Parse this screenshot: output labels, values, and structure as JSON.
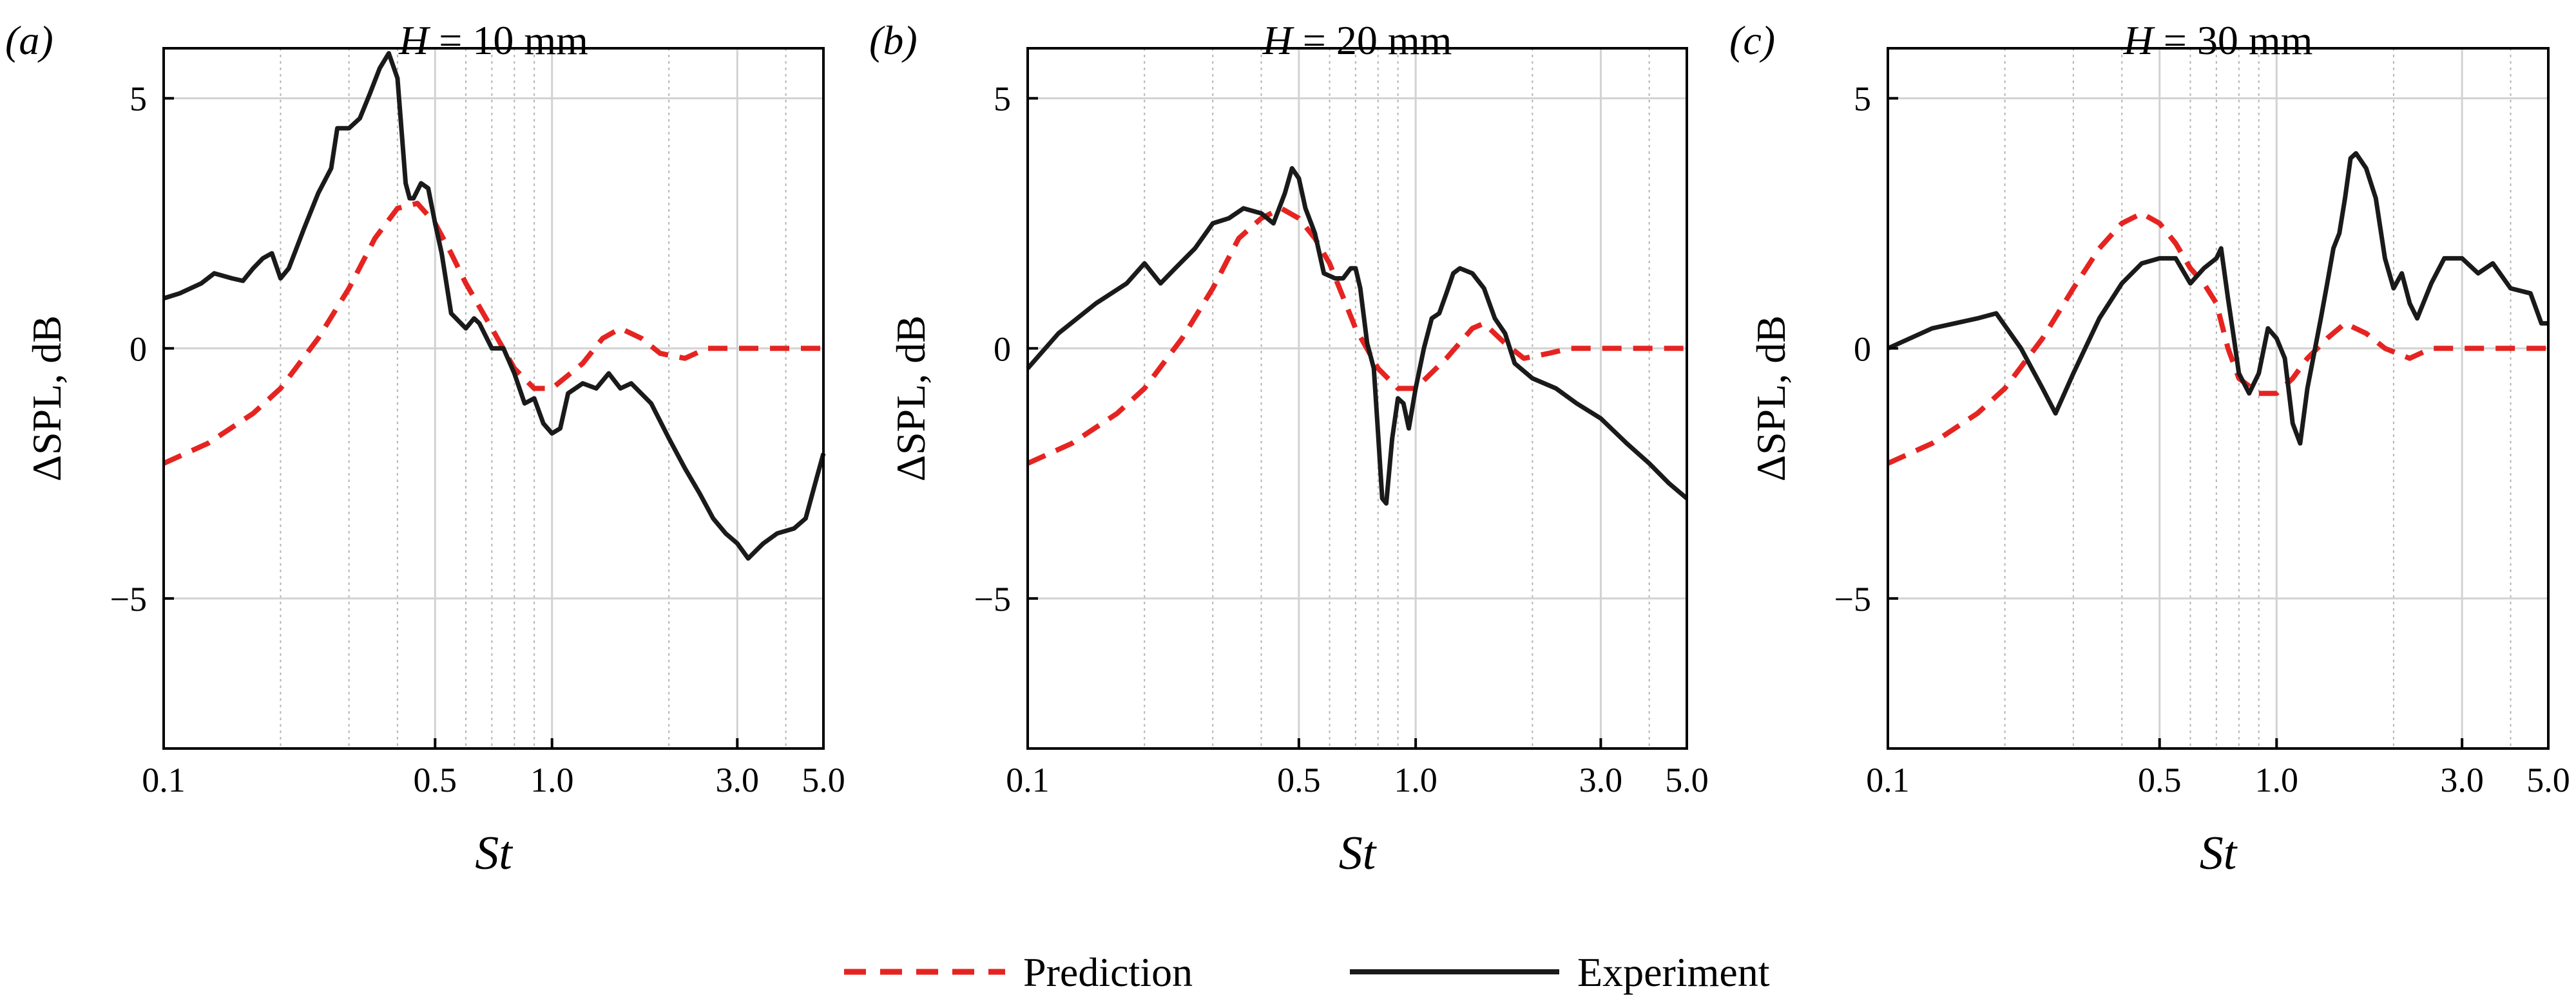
{
  "chart_data": [
    {
      "type": "line",
      "panel_label": "(a)",
      "title_var": "H",
      "title_rest": " = 10 mm",
      "xlabel": "St",
      "ylabel": "ΔSPL, dB",
      "xscale": "log",
      "xlim": [
        0.1,
        5.0
      ],
      "ylim": [
        -8,
        6
      ],
      "xticks": [
        "0.1",
        "0.5",
        "1.0",
        "3.0",
        "5.0"
      ],
      "yticks": [
        "5",
        "0",
        "−5"
      ],
      "grid": true,
      "series": [
        {
          "name": "Prediction",
          "style": "dashed",
          "color": "#e52421",
          "points": [
            [
              0.1,
              -2.3
            ],
            [
              0.13,
              -1.9
            ],
            [
              0.17,
              -1.3
            ],
            [
              0.2,
              -0.8
            ],
            [
              0.25,
              0.2
            ],
            [
              0.3,
              1.2
            ],
            [
              0.35,
              2.2
            ],
            [
              0.4,
              2.8
            ],
            [
              0.45,
              2.9
            ],
            [
              0.5,
              2.5
            ],
            [
              0.55,
              1.9
            ],
            [
              0.6,
              1.3
            ],
            [
              0.7,
              0.4
            ],
            [
              0.8,
              -0.4
            ],
            [
              0.9,
              -0.8
            ],
            [
              1.0,
              -0.8
            ],
            [
              1.2,
              -0.3
            ],
            [
              1.35,
              0.2
            ],
            [
              1.5,
              0.4
            ],
            [
              1.7,
              0.2
            ],
            [
              1.9,
              -0.1
            ],
            [
              2.2,
              -0.2
            ],
            [
              2.5,
              0.0
            ],
            [
              3.0,
              0.0
            ],
            [
              4.0,
              0.0
            ],
            [
              5.0,
              0.0
            ]
          ]
        },
        {
          "name": "Experiment",
          "style": "solid",
          "color": "#1a1a1a",
          "points": [
            [
              0.1,
              1.0
            ],
            [
              0.11,
              1.1
            ],
            [
              0.125,
              1.3
            ],
            [
              0.135,
              1.5
            ],
            [
              0.15,
              1.4
            ],
            [
              0.16,
              1.35
            ],
            [
              0.17,
              1.6
            ],
            [
              0.18,
              1.8
            ],
            [
              0.19,
              1.9
            ],
            [
              0.2,
              1.4
            ],
            [
              0.21,
              1.6
            ],
            [
              0.23,
              2.4
            ],
            [
              0.25,
              3.1
            ],
            [
              0.27,
              3.6
            ],
            [
              0.28,
              4.4
            ],
            [
              0.3,
              4.4
            ],
            [
              0.32,
              4.6
            ],
            [
              0.34,
              5.1
            ],
            [
              0.36,
              5.6
            ],
            [
              0.38,
              5.9
            ],
            [
              0.4,
              5.4
            ],
            [
              0.42,
              3.3
            ],
            [
              0.43,
              3.0
            ],
            [
              0.44,
              3.0
            ],
            [
              0.46,
              3.3
            ],
            [
              0.48,
              3.2
            ],
            [
              0.5,
              2.5
            ],
            [
              0.52,
              1.9
            ],
            [
              0.55,
              0.7
            ],
            [
              0.6,
              0.4
            ],
            [
              0.63,
              0.6
            ],
            [
              0.65,
              0.5
            ],
            [
              0.7,
              0.0
            ],
            [
              0.75,
              0.0
            ],
            [
              0.8,
              -0.5
            ],
            [
              0.85,
              -1.1
            ],
            [
              0.9,
              -1.0
            ],
            [
              0.95,
              -1.5
            ],
            [
              1.0,
              -1.7
            ],
            [
              1.05,
              -1.6
            ],
            [
              1.1,
              -0.9
            ],
            [
              1.2,
              -0.7
            ],
            [
              1.3,
              -0.8
            ],
            [
              1.4,
              -0.5
            ],
            [
              1.5,
              -0.8
            ],
            [
              1.6,
              -0.7
            ],
            [
              1.8,
              -1.1
            ],
            [
              2.0,
              -1.8
            ],
            [
              2.2,
              -2.4
            ],
            [
              2.4,
              -2.9
            ],
            [
              2.6,
              -3.4
            ],
            [
              2.8,
              -3.7
            ],
            [
              3.0,
              -3.9
            ],
            [
              3.2,
              -4.2
            ],
            [
              3.5,
              -3.9
            ],
            [
              3.8,
              -3.7
            ],
            [
              4.2,
              -3.6
            ],
            [
              4.5,
              -3.4
            ],
            [
              4.8,
              -2.6
            ],
            [
              5.0,
              -2.1
            ]
          ]
        }
      ]
    },
    {
      "type": "line",
      "panel_label": "(b)",
      "title_var": "H",
      "title_rest": " = 20 mm",
      "xlabel": "St",
      "ylabel": "ΔSPL, dB",
      "xscale": "log",
      "xlim": [
        0.1,
        5.0
      ],
      "ylim": [
        -8,
        6
      ],
      "xticks": [
        "0.1",
        "0.5",
        "1.0",
        "3.0",
        "5.0"
      ],
      "yticks": [
        "5",
        "0",
        "−5"
      ],
      "grid": true,
      "series": [
        {
          "name": "Prediction",
          "style": "dashed",
          "color": "#e52421",
          "points": [
            [
              0.1,
              -2.3
            ],
            [
              0.13,
              -1.9
            ],
            [
              0.17,
              -1.3
            ],
            [
              0.2,
              -0.8
            ],
            [
              0.25,
              0.2
            ],
            [
              0.3,
              1.2
            ],
            [
              0.35,
              2.2
            ],
            [
              0.4,
              2.6
            ],
            [
              0.45,
              2.8
            ],
            [
              0.5,
              2.6
            ],
            [
              0.55,
              2.2
            ],
            [
              0.6,
              1.7
            ],
            [
              0.7,
              0.4
            ],
            [
              0.8,
              -0.4
            ],
            [
              0.9,
              -0.8
            ],
            [
              1.0,
              -0.8
            ],
            [
              1.2,
              -0.2
            ],
            [
              1.4,
              0.4
            ],
            [
              1.5,
              0.5
            ],
            [
              1.7,
              0.1
            ],
            [
              1.9,
              -0.2
            ],
            [
              2.2,
              -0.1
            ],
            [
              2.5,
              0.0
            ],
            [
              3.0,
              0.0
            ],
            [
              5.0,
              0.0
            ]
          ]
        },
        {
          "name": "Experiment",
          "style": "solid",
          "color": "#1a1a1a",
          "points": [
            [
              0.1,
              -0.4
            ],
            [
              0.12,
              0.3
            ],
            [
              0.15,
              0.9
            ],
            [
              0.18,
              1.3
            ],
            [
              0.2,
              1.7
            ],
            [
              0.22,
              1.3
            ],
            [
              0.24,
              1.6
            ],
            [
              0.27,
              2.0
            ],
            [
              0.3,
              2.5
            ],
            [
              0.33,
              2.6
            ],
            [
              0.36,
              2.8
            ],
            [
              0.4,
              2.7
            ],
            [
              0.43,
              2.5
            ],
            [
              0.46,
              3.1
            ],
            [
              0.48,
              3.6
            ],
            [
              0.5,
              3.4
            ],
            [
              0.52,
              2.8
            ],
            [
              0.55,
              2.3
            ],
            [
              0.58,
              1.5
            ],
            [
              0.62,
              1.4
            ],
            [
              0.65,
              1.4
            ],
            [
              0.68,
              1.6
            ],
            [
              0.7,
              1.6
            ],
            [
              0.72,
              1.2
            ],
            [
              0.75,
              0.1
            ],
            [
              0.78,
              -0.4
            ],
            [
              0.8,
              -1.7
            ],
            [
              0.82,
              -3.0
            ],
            [
              0.84,
              -3.1
            ],
            [
              0.87,
              -1.8
            ],
            [
              0.9,
              -1.0
            ],
            [
              0.93,
              -1.1
            ],
            [
              0.96,
              -1.6
            ],
            [
              1.0,
              -0.8
            ],
            [
              1.05,
              0.0
            ],
            [
              1.1,
              0.6
            ],
            [
              1.15,
              0.7
            ],
            [
              1.2,
              1.1
            ],
            [
              1.25,
              1.5
            ],
            [
              1.3,
              1.6
            ],
            [
              1.4,
              1.5
            ],
            [
              1.5,
              1.2
            ],
            [
              1.6,
              0.6
            ],
            [
              1.7,
              0.3
            ],
            [
              1.8,
              -0.3
            ],
            [
              2.0,
              -0.6
            ],
            [
              2.3,
              -0.8
            ],
            [
              2.6,
              -1.1
            ],
            [
              3.0,
              -1.4
            ],
            [
              3.5,
              -1.9
            ],
            [
              4.0,
              -2.3
            ],
            [
              4.5,
              -2.7
            ],
            [
              5.0,
              -3.0
            ]
          ]
        }
      ]
    },
    {
      "type": "line",
      "panel_label": "(c)",
      "title_var": "H",
      "title_rest": " = 30 mm",
      "xlabel": "St",
      "ylabel": "ΔSPL, dB",
      "xscale": "log",
      "xlim": [
        0.1,
        5.0
      ],
      "ylim": [
        -8,
        6
      ],
      "xticks": [
        "0.1",
        "0.5",
        "1.0",
        "3.0",
        "5.0"
      ],
      "yticks": [
        "5",
        "0",
        "−5"
      ],
      "grid": true,
      "series": [
        {
          "name": "Prediction",
          "style": "dashed",
          "color": "#e52421",
          "points": [
            [
              0.1,
              -2.3
            ],
            [
              0.13,
              -1.9
            ],
            [
              0.17,
              -1.3
            ],
            [
              0.2,
              -0.8
            ],
            [
              0.25,
              0.2
            ],
            [
              0.3,
              1.2
            ],
            [
              0.35,
              2.0
            ],
            [
              0.4,
              2.5
            ],
            [
              0.45,
              2.7
            ],
            [
              0.5,
              2.5
            ],
            [
              0.55,
              2.1
            ],
            [
              0.6,
              1.6
            ],
            [
              0.65,
              1.3
            ],
            [
              0.7,
              0.9
            ],
            [
              0.75,
              0.0
            ],
            [
              0.8,
              -0.6
            ],
            [
              0.9,
              -0.9
            ],
            [
              1.0,
              -0.9
            ],
            [
              1.1,
              -0.6
            ],
            [
              1.2,
              -0.2
            ],
            [
              1.35,
              0.2
            ],
            [
              1.5,
              0.5
            ],
            [
              1.7,
              0.3
            ],
            [
              1.9,
              0.0
            ],
            [
              2.2,
              -0.2
            ],
            [
              2.5,
              0.0
            ],
            [
              3.0,
              0.0
            ],
            [
              5.0,
              0.0
            ]
          ]
        },
        {
          "name": "Experiment",
          "style": "solid",
          "color": "#1a1a1a",
          "points": [
            [
              0.1,
              0.0
            ],
            [
              0.13,
              0.4
            ],
            [
              0.17,
              0.6
            ],
            [
              0.19,
              0.7
            ],
            [
              0.22,
              0.0
            ],
            [
              0.25,
              -0.8
            ],
            [
              0.27,
              -1.3
            ],
            [
              0.3,
              -0.5
            ],
            [
              0.35,
              0.6
            ],
            [
              0.4,
              1.3
            ],
            [
              0.45,
              1.7
            ],
            [
              0.5,
              1.8
            ],
            [
              0.55,
              1.8
            ],
            [
              0.6,
              1.3
            ],
            [
              0.65,
              1.6
            ],
            [
              0.7,
              1.8
            ],
            [
              0.72,
              2.0
            ],
            [
              0.75,
              1.0
            ],
            [
              0.78,
              0.1
            ],
            [
              0.8,
              -0.5
            ],
            [
              0.85,
              -0.9
            ],
            [
              0.9,
              -0.5
            ],
            [
              0.95,
              0.4
            ],
            [
              1.0,
              0.2
            ],
            [
              1.05,
              -0.2
            ],
            [
              1.1,
              -1.5
            ],
            [
              1.15,
              -1.9
            ],
            [
              1.2,
              -0.8
            ],
            [
              1.3,
              0.6
            ],
            [
              1.35,
              1.3
            ],
            [
              1.4,
              2.0
            ],
            [
              1.45,
              2.3
            ],
            [
              1.5,
              3.0
            ],
            [
              1.55,
              3.8
            ],
            [
              1.6,
              3.9
            ],
            [
              1.7,
              3.6
            ],
            [
              1.8,
              3.0
            ],
            [
              1.9,
              1.8
            ],
            [
              2.0,
              1.2
            ],
            [
              2.1,
              1.5
            ],
            [
              2.2,
              0.9
            ],
            [
              2.3,
              0.6
            ],
            [
              2.5,
              1.3
            ],
            [
              2.7,
              1.8
            ],
            [
              3.0,
              1.8
            ],
            [
              3.3,
              1.5
            ],
            [
              3.6,
              1.7
            ],
            [
              4.0,
              1.2
            ],
            [
              4.5,
              1.1
            ],
            [
              4.8,
              0.5
            ],
            [
              5.0,
              0.5
            ]
          ]
        }
      ]
    }
  ],
  "legend": {
    "items": [
      {
        "label": "Prediction",
        "style": "dashed",
        "color": "#e52421"
      },
      {
        "label": "Experiment",
        "style": "solid",
        "color": "#1a1a1a"
      }
    ]
  }
}
